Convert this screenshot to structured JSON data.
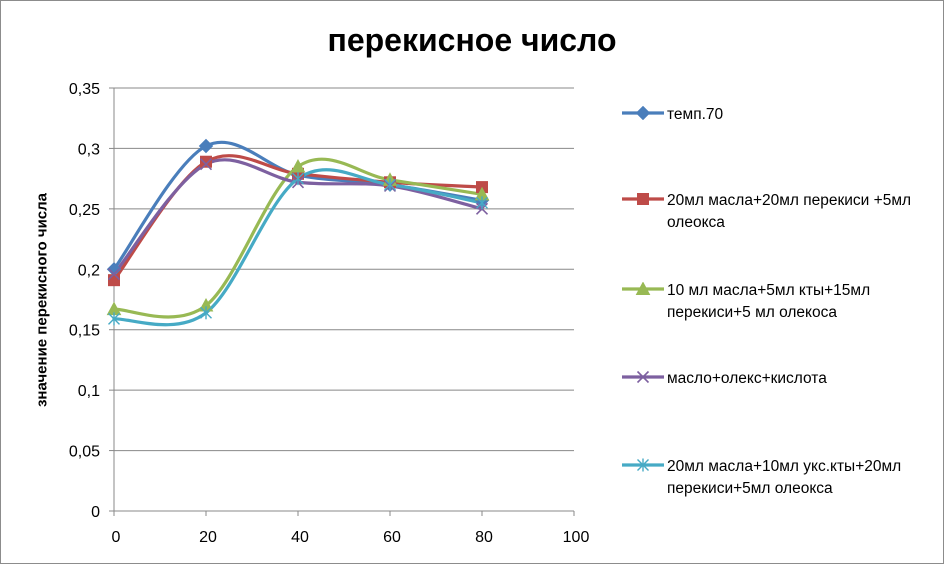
{
  "chart_data": {
    "type": "line",
    "title": "перекисное число",
    "xlabel": "",
    "ylabel": "значение перекисного числа",
    "xlim": [
      0,
      100
    ],
    "ylim": [
      0,
      0.35
    ],
    "x_ticks": [
      "0",
      "20",
      "40",
      "60",
      "80",
      "100"
    ],
    "y_ticks": [
      "0",
      "0,05",
      "0,1",
      "0,15",
      "0,2",
      "0,25",
      "0,3",
      "0,35"
    ],
    "grid": "horizontal",
    "legend_position": "right",
    "smooth": true,
    "series": [
      {
        "name": "темп.70",
        "color": "#4a7ebb",
        "marker": "diamond",
        "x": [
          0,
          20,
          40,
          60,
          80
        ],
        "y": [
          0.2,
          0.302,
          0.278,
          0.27,
          0.257
        ]
      },
      {
        "name": "20мл масла+20мл перекиси +5мл олеокса",
        "color": "#be4b48",
        "marker": "square",
        "x": [
          0,
          20,
          40,
          60,
          80
        ],
        "y": [
          0.191,
          0.289,
          0.279,
          0.272,
          0.268
        ]
      },
      {
        "name": "10 мл масла+5мл кты+15мл перекиси+5 мл олекоса",
        "color": "#98b954",
        "marker": "triangle",
        "x": [
          0,
          20,
          40,
          60,
          80
        ],
        "y": [
          0.167,
          0.17,
          0.285,
          0.274,
          0.262
        ]
      },
      {
        "name": "масло+олекс+кислота",
        "color": "#7d60a0",
        "marker": "x",
        "x": [
          0,
          20,
          40,
          60,
          80
        ],
        "y": [
          0.196,
          0.287,
          0.272,
          0.269,
          0.25
        ]
      },
      {
        "name": "20мл масла+10мл укс.кты+20мл перекиси+5мл олеокса",
        "color": "#46aac5",
        "marker": "star",
        "x": [
          0,
          20,
          40,
          60,
          80
        ],
        "y": [
          0.159,
          0.164,
          0.275,
          0.27,
          0.255
        ]
      }
    ]
  }
}
